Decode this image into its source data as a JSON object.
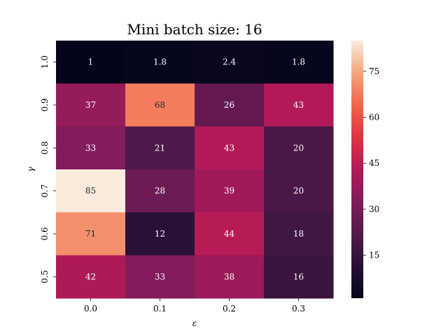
{
  "chart_data": {
    "type": "heatmap",
    "title": "Mini batch size: 16",
    "xlabel": "ε",
    "ylabel": "γ",
    "x_categories": [
      "0.0",
      "0.1",
      "0.2",
      "0.3"
    ],
    "y_categories": [
      "1.0",
      "0.9",
      "0.8",
      "0.7",
      "0.6",
      "0.5"
    ],
    "values": [
      [
        1,
        1.8,
        2.4,
        1.8
      ],
      [
        37,
        68,
        26,
        43
      ],
      [
        33,
        21,
        43,
        20
      ],
      [
        85,
        28,
        39,
        20
      ],
      [
        71,
        12,
        44,
        18
      ],
      [
        42,
        33,
        38,
        16
      ]
    ],
    "value_labels": [
      [
        "1",
        "1.8",
        "2.4",
        "1.8"
      ],
      [
        "37",
        "68",
        "26",
        "43"
      ],
      [
        "33",
        "21",
        "43",
        "20"
      ],
      [
        "85",
        "28",
        "39",
        "20"
      ],
      [
        "71",
        "12",
        "44",
        "18"
      ],
      [
        "42",
        "33",
        "38",
        "16"
      ]
    ],
    "colorbar": {
      "range": [
        1,
        85
      ],
      "ticks": [
        15,
        30,
        45,
        60,
        75
      ],
      "tick_labels": [
        "15",
        "30",
        "45",
        "60",
        "75"
      ],
      "colormap": "rocket"
    },
    "grid": false,
    "legend": "none"
  }
}
